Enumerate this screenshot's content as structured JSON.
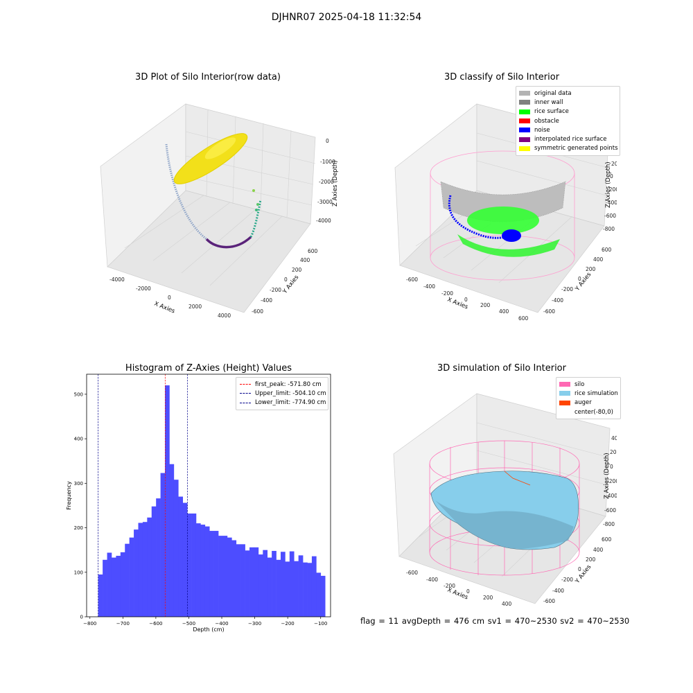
{
  "suptitle": "DJHNR07 2025-04-18 11:32:54",
  "panels": {
    "raw": {
      "title": "3D Plot of Silo Interior(row data)",
      "xlabel": "X Axies",
      "ylabel": "Y Axies",
      "zlabel": "Z Axies (Depth)",
      "xticks": [
        "-4000",
        "-2000",
        "0",
        "2000",
        "4000"
      ],
      "yticks": [
        "600",
        "400",
        "200",
        "0",
        "-200",
        "-400",
        "-600"
      ],
      "zticks": [
        "0",
        "-1000",
        "-2000",
        "-3000",
        "-4000"
      ]
    },
    "classify": {
      "title": "3D classify of Silo Interior",
      "xlabel": "X Axies",
      "ylabel": "Y Axies",
      "zlabel": "Z Axies (Depth)",
      "xticks": [
        "-600",
        "-400",
        "-200",
        "0",
        "200",
        "400",
        "600"
      ],
      "yticks": [
        "600",
        "400",
        "200",
        "0",
        "-200",
        "-400",
        "-600"
      ],
      "zticks": [
        "200",
        "0",
        "-200",
        "-400",
        "-600",
        "-800"
      ],
      "ztick_top": "400",
      "legend": [
        {
          "label": "original data",
          "color": "#b3b3b3"
        },
        {
          "label": "inner wall",
          "color": "#808080"
        },
        {
          "label": "rice surface",
          "color": "#00ff00"
        },
        {
          "label": "obstacle",
          "color": "#ff0000"
        },
        {
          "label": "noise",
          "color": "#0000ff"
        },
        {
          "label": "interpolated rice surface",
          "color": "#800080"
        },
        {
          "label": "symmetric generated points",
          "color": "#ffff00"
        }
      ]
    },
    "simulation": {
      "title": "3D simulation of Silo Interior",
      "xlabel": "X Axies",
      "ylabel": "Y Axies",
      "zlabel": "Z Axies (Depth)",
      "xticks": [
        "-600",
        "-400",
        "-200",
        "0",
        "200",
        "400"
      ],
      "yticks": [
        "600",
        "400",
        "200",
        "0",
        "-200",
        "-400",
        "-600"
      ],
      "zticks": [
        "400",
        "200",
        "0",
        "-200",
        "-400",
        "-600",
        "-800"
      ],
      "legend": [
        {
          "label": "silo",
          "color": "#ff69b4"
        },
        {
          "label": "rice simulation",
          "color": "#87ceeb"
        },
        {
          "label": "auger",
          "color": "#ff4500"
        },
        {
          "label": "center(-80,0)",
          "color": "#ffffff"
        }
      ]
    }
  },
  "footer": "flag = 11  avgDepth = 476 cm  sv1 = 470~2530  sv2 = 470~2530",
  "chart_data": {
    "type": "bar",
    "title": "Histogram of Z-Axies (Height) Values",
    "xlabel": "Depth (cm)",
    "ylabel": "Frequency",
    "xlim": [
      -810,
      -70
    ],
    "ylim": [
      0,
      545
    ],
    "xticks": [
      -800,
      -700,
      -600,
      -500,
      -400,
      -300,
      -200,
      -100
    ],
    "yticks": [
      0,
      100,
      200,
      300,
      400,
      500
    ],
    "bin_start": -774.9,
    "bin_width": 13.5,
    "values": [
      95,
      128,
      144,
      133,
      137,
      145,
      164,
      178,
      196,
      211,
      213,
      223,
      248,
      266,
      323,
      520,
      343,
      308,
      270,
      256,
      232,
      232,
      210,
      207,
      203,
      193,
      193,
      182,
      182,
      178,
      172,
      163,
      163,
      149,
      156,
      156,
      140,
      150,
      133,
      148,
      128,
      146,
      124,
      147,
      125,
      138,
      122,
      121,
      136,
      99,
      92
    ],
    "bar_color": "#4d4dff",
    "vlines": [
      {
        "label": "first_peak: -571.80 cm",
        "x": -571.8,
        "color": "#ff0000"
      },
      {
        "label": "Upper_limit: -504.10 cm",
        "x": -504.1,
        "color": "#00008b"
      },
      {
        "label": "Lower_limit: -774.90 cm",
        "x": -774.9,
        "color": "#00008b"
      }
    ],
    "legend_position": "top-right"
  }
}
